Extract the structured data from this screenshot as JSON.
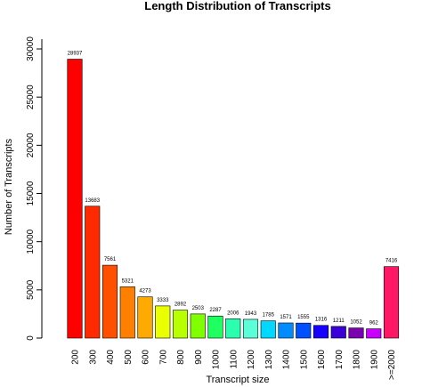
{
  "chart_data": {
    "type": "bar",
    "title": "Length Distribution of Transcripts",
    "xlabel": "Transcript size",
    "ylabel": "Number of Transcripts",
    "categories": [
      "200",
      "300",
      "400",
      "500",
      "600",
      "700",
      "800",
      "900",
      "1000",
      "1100",
      "1200",
      "1300",
      "1400",
      "1500",
      "1600",
      "1700",
      "1800",
      "1900",
      ">=2000"
    ],
    "values": [
      28937,
      13683,
      7561,
      5321,
      4273,
      3333,
      2892,
      2503,
      2287,
      2006,
      1943,
      1785,
      1571,
      1555,
      1316,
      1211,
      1052,
      962,
      7416
    ],
    "data_labels": [
      "28937",
      "13683",
      "7561",
      "5321",
      "4273",
      "3333",
      "2892",
      "2503",
      "2287",
      "2006",
      "1943",
      "1785",
      "1571",
      "1555",
      "1316",
      "1211",
      "1052",
      "962",
      "7416"
    ],
    "colors": [
      "#ff0000",
      "#ff2a00",
      "#ff5000",
      "#ff8000",
      "#ffaa00",
      "#eaff00",
      "#b8ff00",
      "#7fff00",
      "#20ff60",
      "#2affb0",
      "#5affd8",
      "#00d8ff",
      "#008cff",
      "#0050ff",
      "#1800ff",
      "#3a00d8",
      "#7a00b0",
      "#c800ff",
      "#ff1866"
    ],
    "yticks": [
      "0",
      "5000",
      "10000",
      "15000",
      "20000",
      "25000",
      "30000"
    ],
    "ylim": [
      0,
      30000
    ],
    "grid": false,
    "legend": "none"
  }
}
